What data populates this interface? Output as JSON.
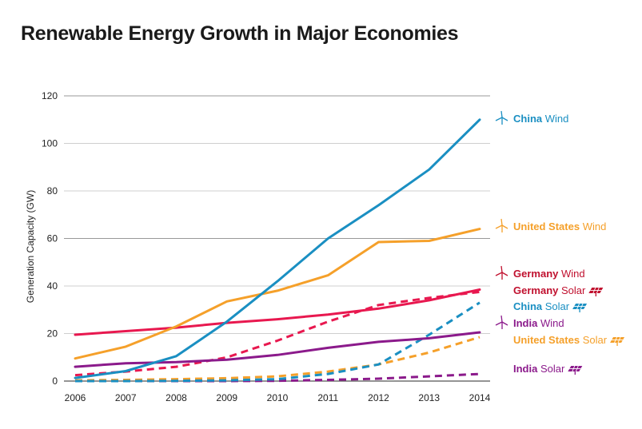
{
  "chart_data": {
    "type": "line",
    "title": "Renewable Energy Growth in Major Economies",
    "ylabel": "Generation Capacity (GW)",
    "xlabel": "",
    "ylim": [
      0,
      120
    ],
    "yticks": [
      0,
      20,
      40,
      60,
      80,
      100,
      120
    ],
    "x": [
      2006,
      2007,
      2008,
      2009,
      2010,
      2011,
      2012,
      2013,
      2014
    ],
    "grid": "horizontal",
    "legend": "right-side direct labels",
    "series": [
      {
        "id": "china-wind",
        "country": "China",
        "tech": "Wind",
        "icon": "wind-turbine-icon",
        "color": "#1a8fc2",
        "labelColor": "#1a8fc2",
        "dashed": false,
        "values": [
          1.3,
          4.2,
          10.5,
          25,
          42,
          60,
          74,
          89,
          110
        ]
      },
      {
        "id": "us-wind",
        "country": "United States",
        "tech": "Wind",
        "icon": "wind-turbine-icon",
        "color": "#f5a02a",
        "labelColor": "#f5a02a",
        "dashed": false,
        "values": [
          9.5,
          14.5,
          23,
          33.5,
          38,
          44.5,
          58.5,
          59,
          64
        ]
      },
      {
        "id": "germany-wind",
        "country": "Germany",
        "tech": "Wind",
        "icon": "wind-turbine-icon",
        "color": "#e8184f",
        "labelColor": "#c0102e",
        "dashed": false,
        "values": [
          19.5,
          21,
          22.5,
          24.5,
          26,
          28,
          30.5,
          34,
          38.5
        ]
      },
      {
        "id": "germany-solar",
        "country": "Germany",
        "tech": "Solar",
        "icon": "solar-panel-icon",
        "color": "#e8184f",
        "labelColor": "#c0102e",
        "dashed": true,
        "values": [
          2.5,
          4,
          6,
          10,
          17,
          25,
          32,
          35,
          37.5
        ]
      },
      {
        "id": "china-solar",
        "country": "China",
        "tech": "Solar",
        "icon": "solar-panel-icon",
        "color": "#1a8fc2",
        "labelColor": "#1a8fc2",
        "dashed": true,
        "values": [
          0,
          0,
          0.1,
          0.3,
          0.8,
          3,
          7,
          19.5,
          33
        ]
      },
      {
        "id": "india-wind",
        "country": "India",
        "tech": "Wind",
        "icon": "wind-turbine-icon",
        "color": "#8b1a8b",
        "labelColor": "#8b1a8b",
        "dashed": false,
        "values": [
          6,
          7.5,
          8,
          9,
          11,
          14,
          16.5,
          18,
          20.5
        ]
      },
      {
        "id": "us-solar",
        "country": "United States",
        "tech": "Solar",
        "icon": "solar-panel-icon",
        "color": "#f5a02a",
        "labelColor": "#f5a02a",
        "dashed": true,
        "values": [
          0.3,
          0.5,
          0.8,
          1.2,
          2,
          4,
          7,
          12,
          18.5
        ]
      },
      {
        "id": "india-solar",
        "country": "India",
        "tech": "Solar",
        "icon": "solar-panel-icon",
        "color": "#8b1a8b",
        "labelColor": "#8b1a8b",
        "dashed": true,
        "values": [
          0,
          0,
          0,
          0,
          0.1,
          0.5,
          1,
          2,
          3
        ]
      }
    ]
  }
}
